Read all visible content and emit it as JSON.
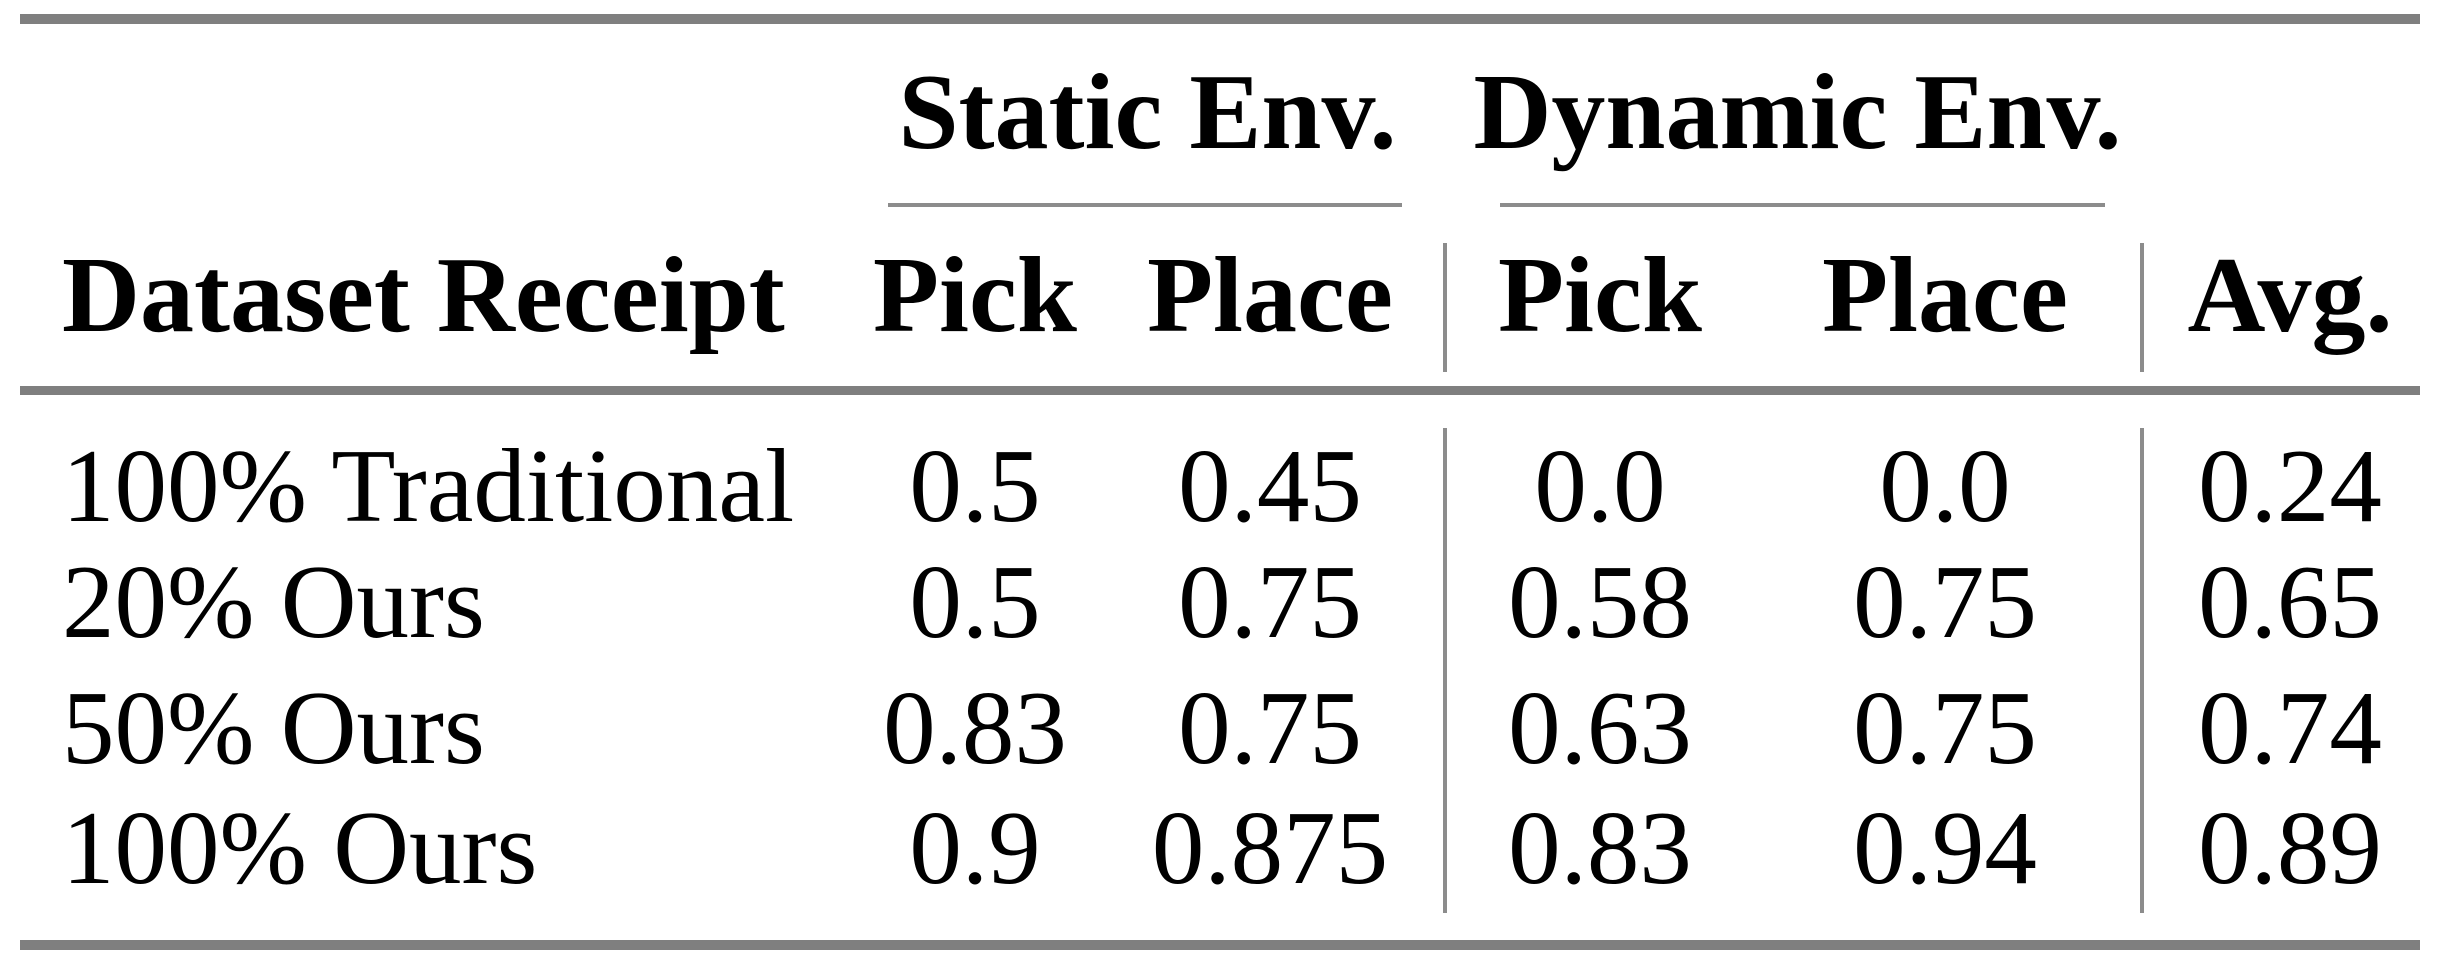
{
  "table": {
    "groups": [
      {
        "label": "Static Env."
      },
      {
        "label": "Dynamic Env."
      }
    ],
    "headers": {
      "dataset": "Dataset Receipt",
      "static_pick": "Pick",
      "static_place": "Place",
      "dynamic_pick": "Pick",
      "dynamic_place": "Place",
      "avg": "Avg."
    },
    "rows": [
      {
        "label": "100% Traditional",
        "values": [
          "0.5",
          "0.45",
          "0.0",
          "0.0",
          "0.24"
        ]
      },
      {
        "label": "20% Ours",
        "values": [
          "0.5",
          "0.75",
          "0.58",
          "0.75",
          "0.65"
        ]
      },
      {
        "label": "50% Ours",
        "values": [
          "0.83",
          "0.75",
          "0.63",
          "0.75",
          "0.74"
        ]
      },
      {
        "label": "100% Ours",
        "values": [
          "0.9",
          "0.875",
          "0.83",
          "0.94",
          "0.89"
        ]
      }
    ],
    "colors": {
      "rule_heavy": "#7f7f7f",
      "rule_light": "#8c8c8c",
      "text": "#000000",
      "background": "#ffffff"
    }
  }
}
